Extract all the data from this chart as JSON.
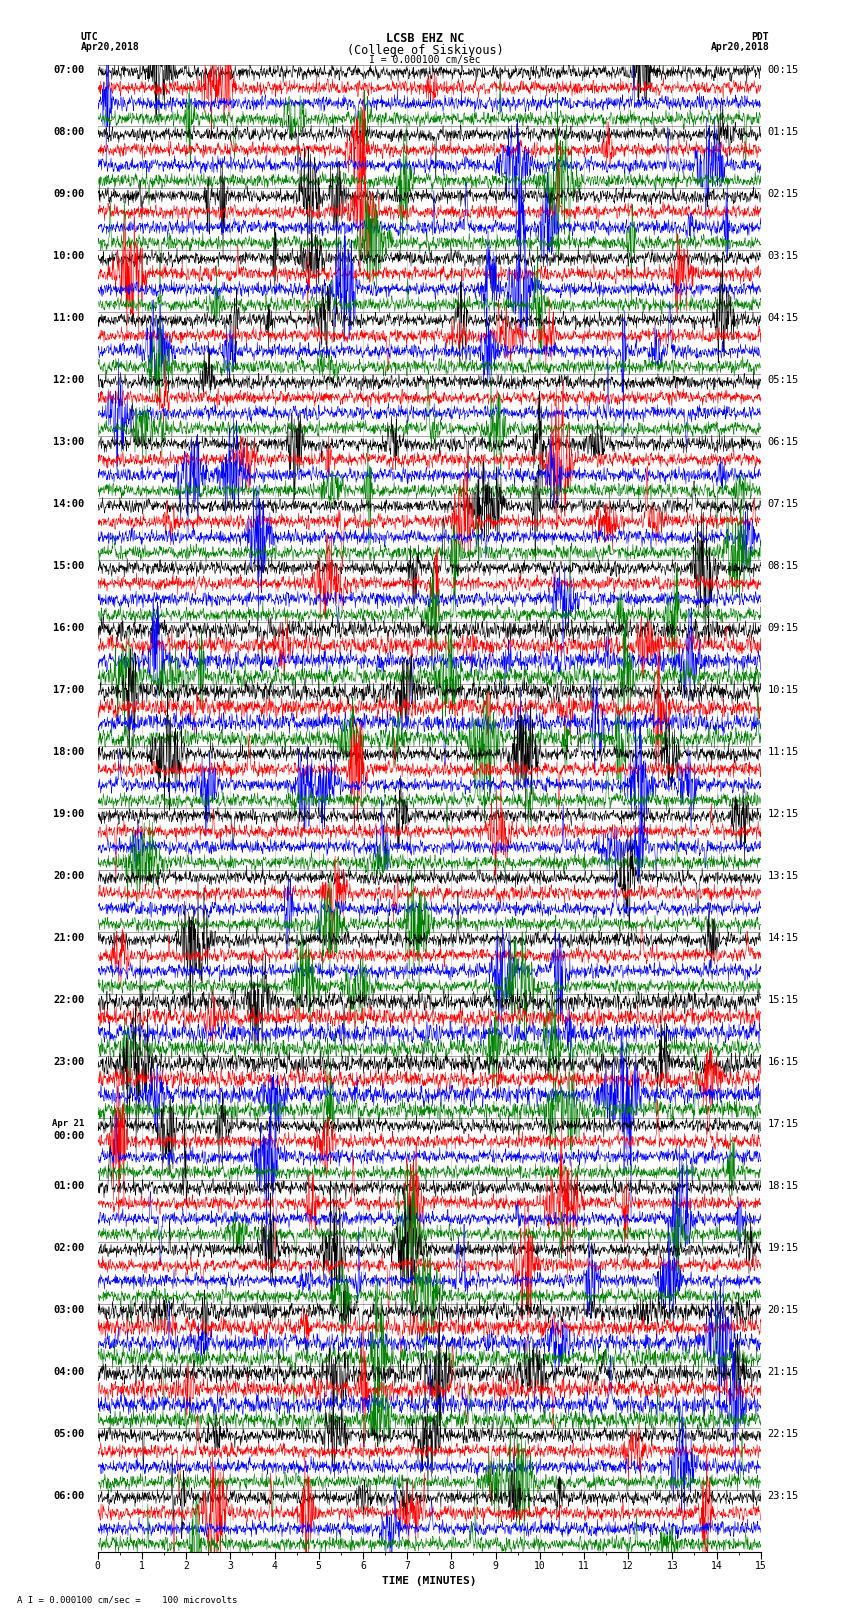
{
  "title_line1": "LCSB EHZ NC",
  "title_line2": "(College of Siskiyous)",
  "scale_label": "I = 0.000100 cm/sec",
  "utc_label": "UTC",
  "utc_date": "Apr20,2018",
  "pdt_label": "PDT",
  "pdt_date": "Apr20,2018",
  "xlabel": "TIME (MINUTES)",
  "footer_label": "A I = 0.000100 cm/sec =    100 microvolts",
  "left_times_utc": [
    "07:00",
    "08:00",
    "09:00",
    "10:00",
    "11:00",
    "12:00",
    "13:00",
    "14:00",
    "15:00",
    "16:00",
    "17:00",
    "18:00",
    "19:00",
    "20:00",
    "21:00",
    "22:00",
    "23:00",
    "Apr 21\n00:00",
    "01:00",
    "02:00",
    "03:00",
    "04:00",
    "05:00",
    "06:00"
  ],
  "right_times_pdt": [
    "00:15",
    "01:15",
    "02:15",
    "03:15",
    "04:15",
    "05:15",
    "06:15",
    "07:15",
    "08:15",
    "09:15",
    "10:15",
    "11:15",
    "12:15",
    "13:15",
    "14:15",
    "15:15",
    "16:15",
    "17:15",
    "18:15",
    "19:15",
    "20:15",
    "21:15",
    "22:15",
    "23:15"
  ],
  "n_hours": 24,
  "traces_per_hour": 4,
  "colors": [
    "black",
    "red",
    "blue",
    "green"
  ],
  "xmin": 0,
  "xmax": 15,
  "background_color": "white",
  "grid_color": "#888888",
  "title_fontsize": 8.5,
  "label_fontsize": 8,
  "tick_fontsize": 7,
  "time_label_fontsize": 7.5
}
